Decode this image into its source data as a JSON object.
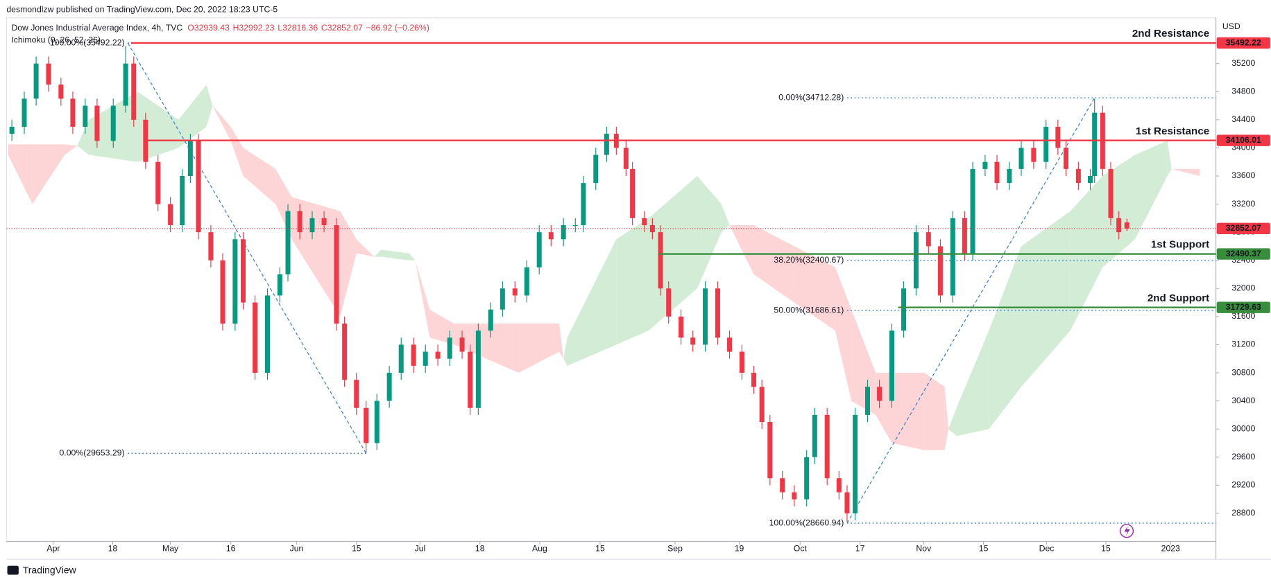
{
  "header": {
    "publisher": "desmondlzw published on TradingView.com, Dec 20, 2022 18:23 UTC-5",
    "logo": "TradingView"
  },
  "chart_data": {
    "type": "candlestick",
    "symbol": "Dow Jones Industrial Average Index, 4h, TVC",
    "ohlc_legend": [
      "O32939.43",
      "H32992.23",
      "L32816.36",
      "C32852.07",
      "−86.92 (−0.26%)"
    ],
    "indicator": "Ichimoku (9, 26, 52, 26)",
    "currency": "USD",
    "up_color": "#089981",
    "down_color": "#f23645",
    "x": [
      -7.7,
      -5.4,
      -3.2,
      -0.9,
      1.4,
      3.6,
      5.9,
      8.1,
      11.1,
      13.4,
      14.9,
      17.1,
      19.4,
      21.7,
      23.9,
      25.4,
      26.9,
      29.2,
      31.4,
      33.7,
      35.2,
      37.4,
      39.7,
      42.0,
      43.5,
      45.7,
      48.0,
      50.2,
      52.5,
      54.0,
      56.2,
      58.0,
      60.0,
      62.3,
      64.5,
      66.8,
      69.0,
      71.3,
      73.5,
      75.8,
      77.3,
      78.8,
      81.1,
      83.3,
      85.6,
      87.8,
      90.1,
      92.3,
      94.6,
      96.8,
      98.3,
      100.6,
      102.6,
      104.4,
      106.2,
      107.4,
      109.6,
      111.1,
      112.6,
      114.1,
      116.4,
      118.6,
      120.9,
      123.2,
      125.4,
      127.7,
      129.9,
      131.4,
      132.9,
      135.2,
      137.4,
      139.7,
      141.2,
      143.5,
      145.7,
      147.2,
      148.7,
      151.0,
      153.2,
      155.5,
      157.7,
      160.0,
      162.3,
      164.5,
      166.8,
      169.0,
      170.5,
      172.8,
      175.0,
      177.3,
      179.5,
      181.8,
      184.1,
      186.3,
      187.8,
      190.1,
      192.3,
      193.1,
      194.6,
      196.1,
      197.6,
      199.1
    ],
    "open": [
      34200,
      34300,
      34700,
      35200,
      34900,
      34700,
      34300,
      34600,
      34100,
      34600,
      35200,
      34400,
      33800,
      33200,
      32900,
      33600,
      34100,
      32800,
      32400,
      31500,
      32700,
      31800,
      30800,
      31900,
      32200,
      33100,
      32800,
      33000,
      32900,
      31500,
      30700,
      30300,
      29800,
      30400,
      30800,
      31200,
      30900,
      31100,
      31000,
      31300,
      31100,
      30300,
      31400,
      31700,
      32000,
      31900,
      32300,
      32800,
      32700,
      32900,
      32900,
      33500,
      33900,
      34200,
      34000,
      33700,
      33000,
      32900,
      32800,
      32000,
      31600,
      31300,
      31200,
      32000,
      31300,
      31100,
      30800,
      30600,
      30100,
      29300,
      29100,
      29000,
      29600,
      30200,
      29300,
      29100,
      28800,
      30200,
      30600,
      30400,
      31400,
      32000,
      32800,
      32600,
      31900,
      33000,
      32500,
      33700,
      33800,
      33500,
      33700,
      34000,
      33800,
      34300,
      34000,
      33700,
      33500,
      33600,
      34500,
      33700,
      33000,
      32939.43
    ],
    "high": [
      34400,
      34800,
      35300,
      35300,
      35000,
      34800,
      34700,
      34700,
      34700,
      35450,
      35300,
      34500,
      33900,
      33300,
      33700,
      34200,
      34200,
      32900,
      32500,
      32800,
      32800,
      31900,
      32000,
      32300,
      33200,
      33200,
      33100,
      33100,
      33000,
      31600,
      30800,
      30400,
      30500,
      30900,
      31300,
      31300,
      31200,
      31200,
      31400,
      31400,
      31200,
      31500,
      31800,
      32100,
      32100,
      32400,
      32900,
      32900,
      33000,
      33000,
      33600,
      34000,
      34300,
      34300,
      34100,
      33800,
      33100,
      33000,
      32900,
      32100,
      31700,
      31400,
      32100,
      32100,
      31400,
      31200,
      30900,
      30700,
      30200,
      29400,
      29200,
      29700,
      30300,
      30300,
      29400,
      29200,
      30300,
      30700,
      30700,
      31500,
      32100,
      32900,
      32900,
      32700,
      33100,
      33100,
      33800,
      33900,
      33900,
      33800,
      34100,
      34100,
      34400,
      34400,
      34100,
      33800,
      33700,
      34700,
      34600,
      33800,
      33100,
      32992.23
    ],
    "low": [
      34100,
      34200,
      34600,
      34800,
      34600,
      34200,
      34200,
      34000,
      34000,
      34500,
      34300,
      33700,
      33100,
      32800,
      32800,
      33500,
      32700,
      32300,
      31400,
      31400,
      31700,
      30700,
      30700,
      31800,
      32100,
      32700,
      32700,
      32800,
      31400,
      30600,
      30200,
      29660,
      29700,
      30300,
      30700,
      30800,
      30800,
      30900,
      30900,
      31000,
      30200,
      30200,
      31300,
      31600,
      31800,
      31800,
      32200,
      32600,
      32600,
      32800,
      32800,
      33400,
      33800,
      33900,
      33600,
      32900,
      32800,
      32700,
      31900,
      31500,
      31200,
      31100,
      31100,
      31200,
      31000,
      30700,
      30500,
      30000,
      29200,
      29000,
      28900,
      28900,
      29500,
      29200,
      29000,
      28680,
      28700,
      30100,
      30300,
      30300,
      31300,
      31900,
      32500,
      31800,
      31800,
      32400,
      32400,
      33600,
      33400,
      33400,
      33600,
      33700,
      33700,
      33900,
      33600,
      33400,
      33400,
      33500,
      33600,
      32900,
      32700,
      32816.36
    ],
    "close": [
      34300,
      34700,
      35200,
      34900,
      34700,
      34300,
      34600,
      34100,
      34600,
      35200,
      34400,
      33800,
      33200,
      32900,
      33600,
      34100,
      32800,
      32400,
      31500,
      32700,
      31800,
      30800,
      31900,
      32200,
      33100,
      32800,
      33000,
      32900,
      31500,
      30700,
      30300,
      29800,
      30400,
      30800,
      31200,
      30900,
      31100,
      31000,
      31300,
      31100,
      30300,
      31400,
      31700,
      32000,
      31900,
      32300,
      32800,
      32700,
      32900,
      32900,
      33500,
      33900,
      34200,
      34000,
      33700,
      33000,
      32900,
      32800,
      32000,
      31600,
      31300,
      31200,
      32000,
      31300,
      31100,
      30800,
      30600,
      30100,
      29300,
      29100,
      29000,
      29600,
      30200,
      29300,
      29100,
      28800,
      30200,
      30600,
      30400,
      31400,
      32000,
      32800,
      32600,
      31900,
      33000,
      32500,
      33700,
      33800,
      33500,
      33700,
      34000,
      33800,
      34300,
      34000,
      33700,
      33500,
      33600,
      34500,
      33700,
      33000,
      32800,
      32852.07
    ],
    "xlim": [
      -8.7,
      215.6
    ],
    "xticks": [
      {
        "value": 0,
        "label": "Apr"
      },
      {
        "value": 11,
        "label": "18"
      },
      {
        "value": 21.7,
        "label": "May"
      },
      {
        "value": 32.9,
        "label": "16"
      },
      {
        "value": 45.1,
        "label": "Jun"
      },
      {
        "value": 56.2,
        "label": "15"
      },
      {
        "value": 68,
        "label": "Jul"
      },
      {
        "value": 79.1,
        "label": "18"
      },
      {
        "value": 90.2,
        "label": "Aug"
      },
      {
        "value": 101.4,
        "label": "15"
      },
      {
        "value": 115.3,
        "label": "Sep"
      },
      {
        "value": 127.2,
        "label": "19"
      },
      {
        "value": 138.5,
        "label": "Oct"
      },
      {
        "value": 149.6,
        "label": "17"
      },
      {
        "value": 161.4,
        "label": "Nov"
      },
      {
        "value": 172.5,
        "label": "15"
      },
      {
        "value": 184.2,
        "label": "Dec"
      },
      {
        "value": 195.2,
        "label": "15"
      },
      {
        "value": 207.2,
        "label": "2023"
      }
    ],
    "ylim": [
      28400,
      35850
    ],
    "yticks": [
      28800,
      29200,
      29600,
      30000,
      30400,
      30800,
      31200,
      31600,
      32000,
      32400,
      32800,
      33200,
      33600,
      34000,
      34400,
      34800,
      35200
    ],
    "last_price": 32852.07,
    "levels": [
      {
        "name": "2nd Resistance",
        "value": 35492.22,
        "start": 14.4,
        "color": "#f23645"
      },
      {
        "name": "1st Resistance",
        "value": 34106.01,
        "start": 16.8,
        "color": "#f23645"
      },
      {
        "name": "1st Support",
        "value": 32490.37,
        "start": 112.2,
        "color": "#388e3c"
      },
      {
        "name": "2nd Support",
        "value": 31729.63,
        "start": 156.7,
        "color": "#388e3c"
      }
    ],
    "fib_color": "#2f7bd8",
    "fibs": [
      {
        "x": [
          13.8,
          58.0
        ],
        "y": [
          35492.22,
          29653.29
        ],
        "extend": false,
        "levels": [
          {
            "value": 35492.22,
            "label": "100.00%(35492.22)"
          },
          {
            "value": 29653.29,
            "label": "0.00%(29653.29)"
          }
        ]
      },
      {
        "x": [
          147.2,
          193.1
        ],
        "y": [
          28660.94,
          34712.28
        ],
        "extend": true,
        "levels": [
          {
            "value": 34712.28,
            "label": "0.00%(34712.28)"
          },
          {
            "value": 32400.67,
            "label": "38.20%(32400.67)"
          },
          {
            "value": 31686.61,
            "label": "50.00%(31686.61)"
          },
          {
            "value": 28660.94,
            "label": "100.00%(28660.94)"
          }
        ]
      }
    ],
    "cloud": {
      "up_color": "#d3ecd5",
      "down_color": "#fdd5d7",
      "x": [
        -8.4,
        -3.9,
        2.1,
        4.4,
        6.6,
        15.6,
        23.2,
        28.4,
        29.5,
        32.9,
        35.2,
        41.2,
        44.2,
        53.2,
        56.2,
        59.5,
        60.8,
        66.0,
        67.1,
        69.8,
        74.3,
        80.3,
        86.3,
        93.8,
        94.6,
        95.3,
        104.4,
        110.4,
        119.4,
        123.9,
        125.4,
        129.9,
        137.4,
        145.0,
        148.0,
        152.5,
        155.5,
        161.5,
        165.3,
        166.0,
        167.5,
        173.5,
        179.5,
        188.6,
        194.6,
        200.6,
        206.6,
        207.4,
        212.6
      ],
      "span_a": [
        33900,
        33200,
        33900,
        34030,
        34400,
        34800,
        34400,
        34900,
        34600,
        34100,
        33600,
        33200,
        32700,
        31600,
        32500,
        32450,
        32550,
        32500,
        32400,
        31300,
        31200,
        31000,
        30800,
        31100,
        31000,
        31300,
        32700,
        33000,
        33600,
        33200,
        32900,
        32200,
        31800,
        31400,
        30400,
        30200,
        29800,
        29700,
        29700,
        30000,
        30300,
        31400,
        32600,
        33100,
        33600,
        33900,
        34100,
        33700,
        33600
      ],
      "span_b": [
        34050,
        34050,
        34050,
        34030,
        33900,
        33800,
        34000,
        34300,
        34600,
        34300,
        34000,
        33700,
        33300,
        33100,
        32700,
        32450,
        32450,
        32400,
        32400,
        31700,
        31500,
        31500,
        31500,
        31500,
        31000,
        30900,
        31200,
        31400,
        32000,
        32800,
        32900,
        32900,
        32600,
        32300,
        31700,
        30800,
        30800,
        30800,
        30600,
        30000,
        29900,
        30000,
        30600,
        31400,
        32300,
        32700,
        33600,
        33700,
        33700
      ]
    }
  }
}
